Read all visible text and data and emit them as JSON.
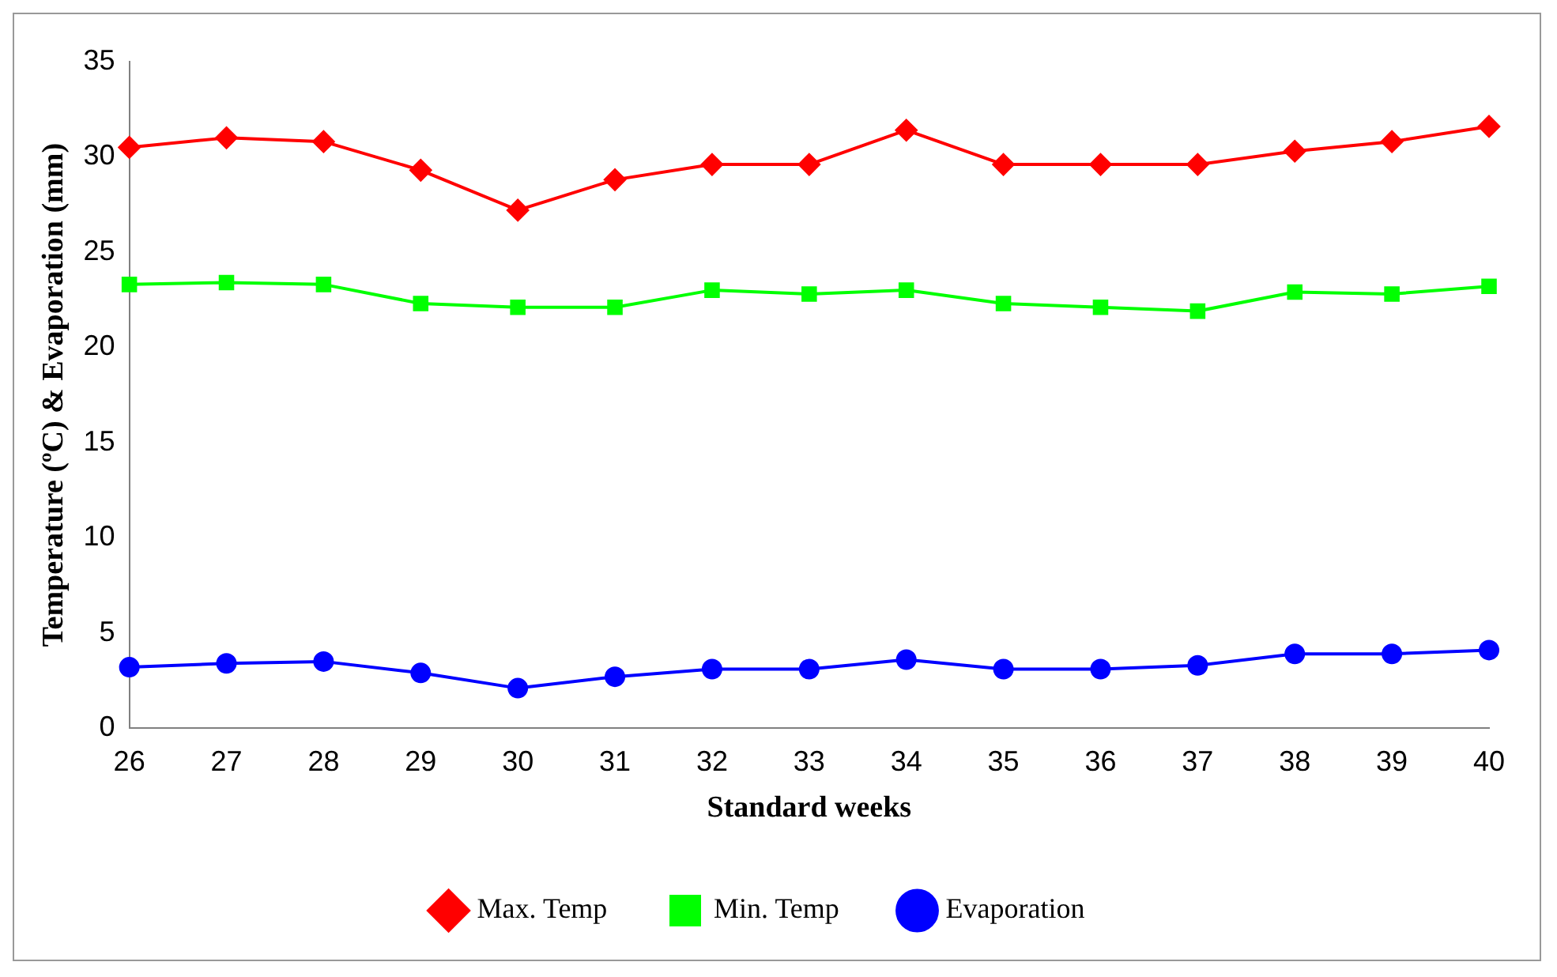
{
  "chart_data": {
    "type": "line",
    "xlabel": "Standard weeks",
    "ylabel": "Temperature (ºC) & Evaporation (mm)",
    "categories": [
      "26",
      "27",
      "28",
      "29",
      "30",
      "31",
      "32",
      "33",
      "34",
      "35",
      "36",
      "37",
      "38",
      "39",
      "40"
    ],
    "ylim": [
      0,
      35
    ],
    "yticks": [
      0,
      5,
      10,
      15,
      20,
      25,
      30,
      35
    ],
    "grid": false,
    "legend": "bottom",
    "line_style": "solid",
    "series": [
      {
        "name": "Max. Temp",
        "color": "#ff0000",
        "marker": "diamond",
        "values": [
          30.5,
          31.0,
          30.8,
          29.3,
          27.2,
          28.8,
          29.6,
          29.6,
          31.4,
          29.6,
          29.6,
          29.6,
          30.3,
          30.8,
          31.6
        ]
      },
      {
        "name": "Min. Temp",
        "color": "#00ff00",
        "marker": "square",
        "values": [
          23.3,
          23.4,
          23.3,
          22.3,
          22.1,
          22.1,
          23.0,
          22.8,
          23.0,
          22.3,
          22.1,
          21.9,
          22.9,
          22.8,
          23.2
        ]
      },
      {
        "name": "Evaporation",
        "color": "#0000ff",
        "marker": "circle",
        "values": [
          3.2,
          3.4,
          3.5,
          2.9,
          2.1,
          2.7,
          3.1,
          3.1,
          3.6,
          3.1,
          3.1,
          3.3,
          3.9,
          3.9,
          4.1
        ]
      }
    ]
  }
}
